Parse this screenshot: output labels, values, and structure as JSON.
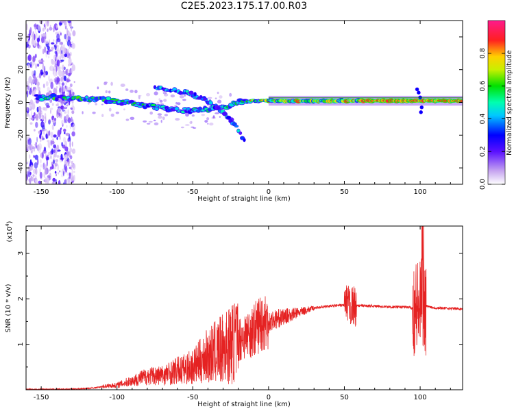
{
  "title": "C2E5.2023.175.17.00.R03",
  "chart_data": [
    {
      "type": "heatmap",
      "panel": "spectrogram",
      "xlabel": "Height of straight line (km)",
      "ylabel": "Frequency (Hz)",
      "xlim": [
        -160,
        128
      ],
      "ylim": [
        -50,
        50
      ],
      "xticks": [
        -150,
        -100,
        -50,
        0,
        50,
        100
      ],
      "xtick_labels": [
        "-150",
        "-100",
        "-50",
        "0",
        "50",
        "100"
      ],
      "yticks": [
        -40,
        -20,
        0,
        20,
        40
      ],
      "ytick_labels": [
        "-40",
        "-20",
        "0",
        "20",
        "40"
      ],
      "colorbar": {
        "label": "Normalized spectral amplitude",
        "range": [
          0,
          1
        ],
        "ticks": [
          0.0,
          0.2,
          0.4,
          0.6,
          0.8
        ],
        "tick_labels": [
          "0.0",
          "0.2",
          "0.4",
          "0.6",
          "0.8"
        ]
      },
      "main_trace": {
        "x": [
          -153,
          -140,
          -125,
          -110,
          -95,
          -80,
          -65,
          -50,
          -40,
          -30,
          -20,
          -10,
          0,
          20,
          50,
          80,
          100,
          110,
          128
        ],
        "y": [
          3,
          3,
          2,
          2,
          0,
          -2,
          -4,
          -5,
          -4,
          -3,
          0,
          1,
          1,
          1,
          1,
          1,
          1,
          1,
          1
        ]
      },
      "branches": [
        {
          "x": [
            -75,
            -60,
            -45,
            -35,
            -28,
            -22
          ],
          "y": [
            9,
            7,
            3,
            -2,
            -8,
            -13
          ]
        },
        {
          "x": [
            -55,
            -45,
            -38,
            -30,
            -22,
            -15
          ],
          "y": [
            7,
            3,
            -1,
            -6,
            -14,
            -25
          ]
        }
      ],
      "noise_region": [
        -160,
        -128
      ]
    },
    {
      "type": "line",
      "panel": "snr",
      "xlabel": "Height of straight line (km)",
      "ylabel": "SNR (10 * v/v)",
      "y_multiplier": "(x10",
      "y_multiplier_exp": "4",
      "y_multiplier_close": ")",
      "xlim": [
        -160,
        128
      ],
      "ylim": [
        0,
        3.6
      ],
      "xticks": [
        -150,
        -100,
        -50,
        0,
        50,
        100
      ],
      "xtick_labels": [
        "-150",
        "-100",
        "-50",
        "0",
        "50",
        "100"
      ],
      "yticks": [
        1,
        2,
        3
      ],
      "ytick_labels": [
        "1",
        "2",
        "3"
      ],
      "series": [
        {
          "name": "SNR",
          "color": "#e52222",
          "x": [
            -160,
            -140,
            -125,
            -115,
            -108,
            -100,
            -90,
            -80,
            -70,
            -60,
            -50,
            -40,
            -30,
            -20,
            -10,
            -5,
            0,
            10,
            20,
            30,
            40,
            50,
            55,
            60,
            70,
            80,
            90,
            95,
            100,
            103,
            110,
            128
          ],
          "y": [
            0.01,
            0.01,
            0.02,
            0.04,
            0.08,
            0.1,
            0.2,
            0.3,
            0.32,
            0.42,
            0.5,
            0.75,
            0.9,
            1.1,
            1.3,
            1.5,
            1.5,
            1.6,
            1.7,
            1.8,
            1.84,
            1.86,
            1.83,
            1.85,
            1.84,
            1.82,
            1.82,
            1.8,
            1.8,
            1.85,
            1.8,
            1.78
          ]
        }
      ]
    }
  ]
}
